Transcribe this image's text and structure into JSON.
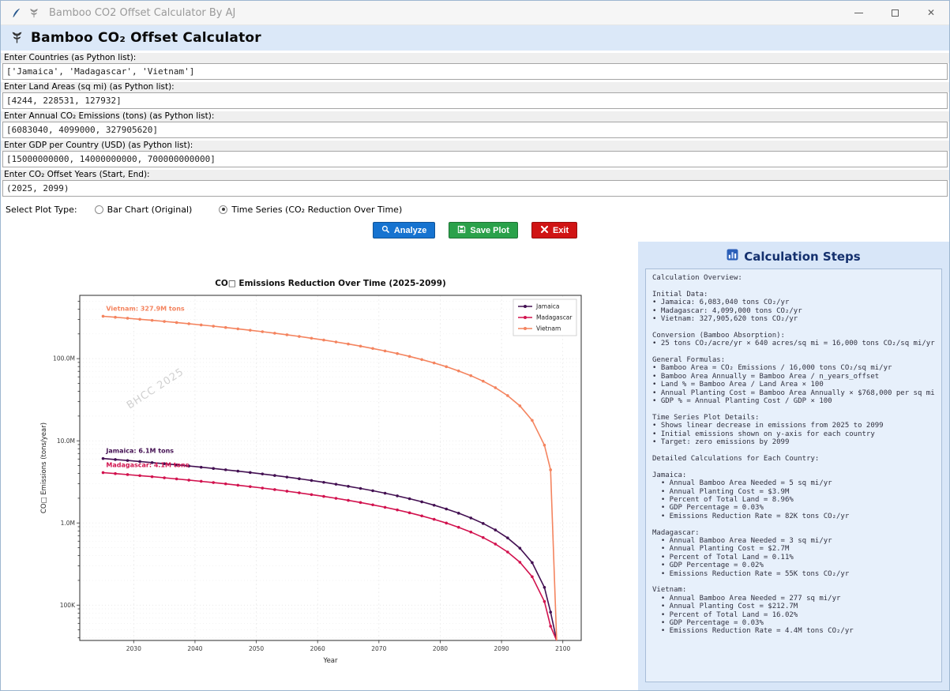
{
  "window": {
    "title": "Bamboo CO2 Offset Calculator By AJ"
  },
  "header": {
    "title": "Bamboo CO₂ Offset Calculator"
  },
  "form": {
    "fields": [
      {
        "label": "Enter Countries (as Python list):",
        "value": "['Jamaica', 'Madagascar', 'Vietnam']"
      },
      {
        "label": "Enter Land Areas (sq mi) (as Python list):",
        "value": "[4244, 228531, 127932]"
      },
      {
        "label": "Enter Annual CO₂ Emissions (tons) (as Python list):",
        "value": "[6083040, 4099000, 327905620]"
      },
      {
        "label": "Enter GDP per Country (USD) (as Python list):",
        "value": "[15000000000, 14000000000, 700000000000]"
      },
      {
        "label": "Enter CO₂ Offset Years (Start, End):",
        "value": "(2025, 2099)"
      }
    ],
    "plot_type": {
      "label": "Select Plot Type:",
      "options": [
        {
          "label": "Bar Chart (Original)",
          "selected": false
        },
        {
          "label": "Time Series (CO₂ Reduction Over Time)",
          "selected": true
        }
      ]
    }
  },
  "buttons": {
    "analyze": "Analyze",
    "save": "Save Plot",
    "exit": "Exit",
    "analyze_color": "#1673d0",
    "save_color": "#2aa14a",
    "exit_color": "#d01414"
  },
  "chart_data": {
    "type": "line",
    "title": "CO□ Emissions Reduction Over Time (2025-2099)",
    "xlabel": "Year",
    "ylabel": "CO□ Emissions (tons/year)",
    "x_start": 2025,
    "x_end": 2099,
    "x_ticks": [
      2030,
      2040,
      2050,
      2060,
      2070,
      2080,
      2090,
      2100
    ],
    "xlim": [
      2021.2,
      2103.0
    ],
    "y_scale": "log",
    "ylim_log": [
      4.57,
      8.77
    ],
    "y_ticks": [
      {
        "v": 100000,
        "label": "100K"
      },
      {
        "v": 1000000,
        "label": "1.0M"
      },
      {
        "v": 10000000,
        "label": "10.0M"
      },
      {
        "v": 100000000,
        "label": "100.0M"
      }
    ],
    "trend": "linear decrease from initial value in 2025 to zero in 2099",
    "series": [
      {
        "name": "Jamaica",
        "color": "#431052",
        "initial": 6083040,
        "annotation": "Jamaica: 6.1M tons"
      },
      {
        "name": "Madagascar",
        "color": "#d2124e",
        "initial": 4099000,
        "annotation": "Madagascar: 4.1M tons"
      },
      {
        "name": "Vietnam",
        "color": "#f4845f",
        "initial": 327905620,
        "annotation": "Vietnam: 327.9M tons"
      }
    ],
    "legend_position": "upper right",
    "grid": true,
    "watermark": "BHCC 2025"
  },
  "calc_panel": {
    "title": "Calculation Steps",
    "lines": [
      "Calculation Overview:",
      "",
      "Initial Data:",
      "• Jamaica: 6,083,040 tons CO₂/yr",
      "• Madagascar: 4,099,000 tons CO₂/yr",
      "• Vietnam: 327,905,620 tons CO₂/yr",
      "",
      "Conversion (Bamboo Absorption):",
      "• 25 tons CO₂/acre/yr × 640 acres/sq mi = 16,000 tons CO₂/sq mi/yr",
      "",
      "General Formulas:",
      "• Bamboo Area = CO₂ Emissions / 16,000 tons CO₂/sq mi/yr",
      "• Bamboo Area Annually = Bamboo Area / n_years_offset",
      "• Land % = Bamboo Area / Land Area × 100",
      "• Annual Planting Cost = Bamboo Area Annually × $768,000 per sq mi",
      "• GDP % = Annual Planting Cost / GDP × 100",
      "",
      "Time Series Plot Details:",
      "• Shows linear decrease in emissions from 2025 to 2099",
      "• Initial emissions shown on y-axis for each country",
      "• Target: zero emissions by 2099",
      "",
      "Detailed Calculations for Each Country:",
      "",
      "Jamaica:",
      "  • Annual Bamboo Area Needed = 5 sq mi/yr",
      "  • Annual Planting Cost = $3.9M",
      "  • Percent of Total Land = 8.96%",
      "  • GDP Percentage = 0.03%",
      "  • Emissions Reduction Rate = 82K tons CO₂/yr",
      "",
      "Madagascar:",
      "  • Annual Bamboo Area Needed = 3 sq mi/yr",
      "  • Annual Planting Cost = $2.7M",
      "  • Percent of Total Land = 0.11%",
      "  • GDP Percentage = 0.02%",
      "  • Emissions Reduction Rate = 55K tons CO₂/yr",
      "",
      "Vietnam:",
      "  • Annual Bamboo Area Needed = 277 sq mi/yr",
      "  • Annual Planting Cost = $212.7M",
      "  • Percent of Total Land = 16.02%",
      "  • GDP Percentage = 0.03%",
      "  • Emissions Reduction Rate = 4.4M tons CO₂/yr"
    ]
  }
}
